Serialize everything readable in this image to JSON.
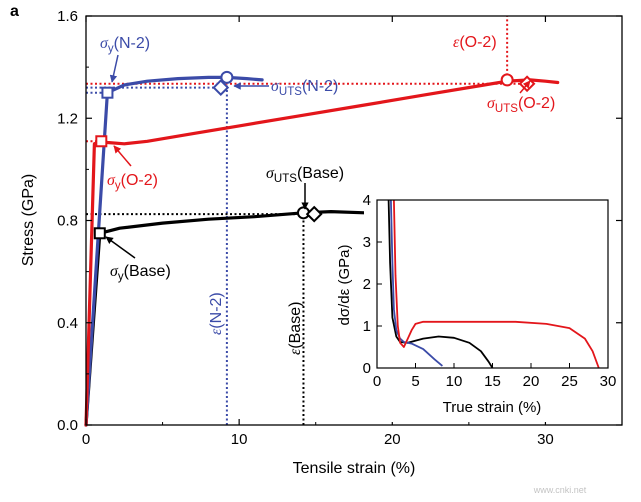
{
  "panel_label": "a",
  "watermark": "www.cnki.net",
  "chart_data": [
    {
      "type": "line",
      "title": "",
      "xlabel": "Tensile strain (%)",
      "ylabel": "Stress (GPa)",
      "xlim": [
        0,
        35
      ],
      "ylim": [
        0,
        1.6
      ],
      "xticks": [
        0,
        10,
        20,
        30
      ],
      "yticks": [
        0,
        0.4,
        0.8,
        1.2,
        1.6
      ],
      "xtick_labels": [
        "0",
        "10",
        "20",
        "30"
      ],
      "ytick_labels": [
        "0.0",
        "0.4",
        "0.8",
        "1.2",
        "1.6"
      ],
      "colors": {
        "Base": "#000000",
        "N-2": "#3b4ba8",
        "O-2": "#e3161b"
      },
      "series": [
        {
          "name": "Base",
          "color": "#000000",
          "x": [
            0,
            0.9,
            2.2,
            5,
            8,
            11,
            14.2,
            16,
            18.2
          ],
          "y": [
            0,
            0.75,
            0.77,
            0.79,
            0.805,
            0.815,
            0.83,
            0.835,
            0.83
          ]
        },
        {
          "name": "N-2",
          "color": "#3b4ba8",
          "x": [
            0,
            1.4,
            2.5,
            4,
            6,
            8,
            9.2,
            10.5,
            11.5
          ],
          "y": [
            0,
            1.3,
            1.33,
            1.345,
            1.355,
            1.36,
            1.36,
            1.355,
            1.35
          ]
        },
        {
          "name": "O-2",
          "color": "#e3161b",
          "x": [
            0,
            0.55,
            1.0,
            1.4,
            2.5,
            4,
            7,
            10,
            14,
            18,
            22,
            26,
            27.5,
            29,
            30,
            30.8
          ],
          "y": [
            0,
            1.1,
            1.11,
            1.105,
            1.1,
            1.11,
            1.14,
            1.17,
            1.21,
            1.25,
            1.29,
            1.33,
            1.345,
            1.35,
            1.345,
            1.34
          ]
        }
      ],
      "markers": [
        {
          "series": "N-2",
          "kind": "yield",
          "shape": "square",
          "x": 1.4,
          "y": 1.3
        },
        {
          "series": "N-2",
          "kind": "uts",
          "shape": "diamond",
          "x": 8.8,
          "y": 1.32
        },
        {
          "series": "N-2",
          "kind": "eps",
          "shape": "circle",
          "x": 9.2,
          "y": 1.36
        },
        {
          "series": "O-2",
          "kind": "yield",
          "shape": "square",
          "x": 1.0,
          "y": 1.11
        },
        {
          "series": "O-2",
          "kind": "uts",
          "shape": "diamond",
          "x": 28.8,
          "y": 1.335
        },
        {
          "series": "O-2",
          "kind": "eps",
          "shape": "circle",
          "x": 27.5,
          "y": 1.35
        },
        {
          "series": "Base",
          "kind": "yield",
          "shape": "square",
          "x": 0.9,
          "y": 0.75
        },
        {
          "series": "Base",
          "kind": "eps",
          "shape": "circle",
          "x": 14.2,
          "y": 0.83
        },
        {
          "series": "Base",
          "kind": "uts",
          "shape": "diamond",
          "x": 14.9,
          "y": 0.825
        }
      ],
      "reference_lines": [
        {
          "series": "N-2",
          "orientation": "h",
          "y": 1.3,
          "x_from": 0,
          "x_to": 1.4
        },
        {
          "series": "N-2",
          "orientation": "h",
          "y": 1.32,
          "x_from": 0,
          "x_to": 8.8
        },
        {
          "series": "N-2",
          "orientation": "v",
          "x": 9.2,
          "y_from": 0,
          "y_to": 1.36
        },
        {
          "series": "O-2",
          "orientation": "h",
          "y": 1.11,
          "x_from": 0,
          "x_to": 1.0
        },
        {
          "series": "O-2",
          "orientation": "h",
          "y": 1.335,
          "x_from": 0,
          "x_to": 28.8
        },
        {
          "series": "O-2",
          "orientation": "v",
          "x": 27.5,
          "y_from": 1.35,
          "y_to": 1.6
        },
        {
          "series": "Base",
          "orientation": "h",
          "y": 0.825,
          "x_from": 0,
          "x_to": 14.9
        },
        {
          "series": "Base",
          "orientation": "v",
          "x": 14.2,
          "y_from": 0,
          "y_to": 0.83
        }
      ],
      "annotations": [
        {
          "id": "sy_n2",
          "series": "N-2",
          "base": "σ",
          "sub": "y",
          "tail": "(N-2)"
        },
        {
          "id": "suts_n2",
          "series": "N-2",
          "base": "σ",
          "sub": "UTS",
          "tail": "(N-2)"
        },
        {
          "id": "eps_n2",
          "series": "N-2",
          "base": "ε",
          "sub": "",
          "tail": "(N-2)"
        },
        {
          "id": "eps_o2",
          "series": "O-2",
          "base": "ε",
          "sub": "",
          "tail": "(O-2)"
        },
        {
          "id": "suts_o2",
          "series": "O-2",
          "base": "σ",
          "sub": "UTS",
          "tail": "(O-2)"
        },
        {
          "id": "sy_o2",
          "series": "O-2",
          "base": "σ",
          "sub": "y",
          "tail": "(O-2)"
        },
        {
          "id": "suts_base",
          "series": "Base",
          "base": "σ",
          "sub": "UTS",
          "tail": "(Base)"
        },
        {
          "id": "eps_base",
          "series": "Base",
          "base": "ε",
          "sub": "",
          "tail": "(Base)"
        },
        {
          "id": "sy_base",
          "series": "Base",
          "base": "σ",
          "sub": "y",
          "tail": "(Base)"
        }
      ]
    },
    {
      "type": "line",
      "title": "",
      "xlabel": "True strain (%)",
      "ylabel": "dσ/dε (GPa)",
      "xlim": [
        0,
        30
      ],
      "ylim": [
        0,
        4
      ],
      "xticks": [
        0,
        5,
        10,
        15,
        20,
        25,
        30
      ],
      "yticks": [
        0,
        1,
        2,
        3,
        4
      ],
      "xtick_labels": [
        "0",
        "5",
        "10",
        "15",
        "20",
        "25",
        "30"
      ],
      "ytick_labels": [
        "0",
        "1",
        "2",
        "3",
        "4"
      ],
      "series": [
        {
          "name": "Base",
          "color": "#000000",
          "x": [
            1.5,
            1.7,
            2.0,
            2.5,
            3.0,
            4.0,
            6.0,
            8.0,
            10.0,
            12.0,
            13.5,
            14.5,
            15.0
          ],
          "y": [
            4.0,
            2.5,
            1.2,
            0.75,
            0.62,
            0.6,
            0.7,
            0.75,
            0.72,
            0.6,
            0.4,
            0.15,
            0.0
          ]
        },
        {
          "name": "N-2",
          "color": "#3b4ba8",
          "x": [
            1.8,
            2.0,
            2.2,
            2.5,
            3.0,
            3.5,
            4.5,
            6.0,
            7.5,
            8.5
          ],
          "y": [
            4.0,
            2.5,
            1.4,
            0.9,
            0.7,
            0.62,
            0.58,
            0.45,
            0.2,
            0.05
          ]
        },
        {
          "name": "O-2",
          "color": "#e3161b",
          "x": [
            2.2,
            2.4,
            2.7,
            3.0,
            3.5,
            4.0,
            4.5,
            5.0,
            6.0,
            8.0,
            12.0,
            18.0,
            22.0,
            25.0,
            27.0,
            28.0,
            28.8
          ],
          "y": [
            4.0,
            2.2,
            1.0,
            0.6,
            0.5,
            0.7,
            0.9,
            1.05,
            1.1,
            1.1,
            1.1,
            1.1,
            1.05,
            0.95,
            0.7,
            0.4,
            0.0
          ]
        }
      ]
    }
  ]
}
